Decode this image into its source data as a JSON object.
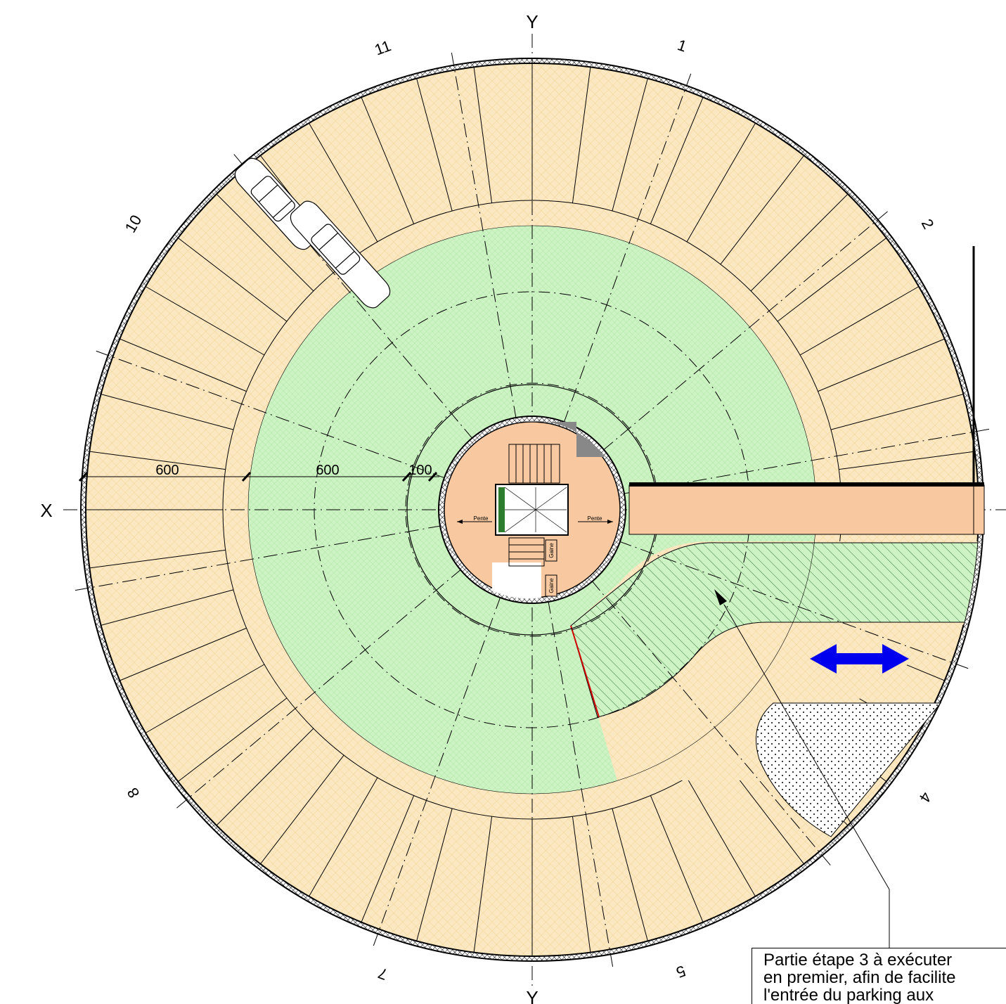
{
  "axes": {
    "x_left": "X",
    "y_top": "Y",
    "y_bottom": "Y"
  },
  "sector_labels": [
    "1",
    "2",
    "4",
    "5",
    "7",
    "8",
    "10",
    "11"
  ],
  "dimensions": [
    "600",
    "600",
    "100"
  ],
  "small_labels": {
    "pente": "Pente",
    "gaine": "Gaine"
  },
  "note": {
    "line1": "Partie étape 3 à exécuter",
    "line2": "en premier, afin de facilite",
    "line3": "l'entrée du parking aux"
  },
  "colors": {
    "parking": "#fbe8c2",
    "green_ramp": "#c9f2c0",
    "core": "#f8c9a0",
    "arrow": "#0000ee",
    "wall": "#000000"
  },
  "icons": [
    "double-arrow-icon",
    "car-icon",
    "stair-icon"
  ]
}
